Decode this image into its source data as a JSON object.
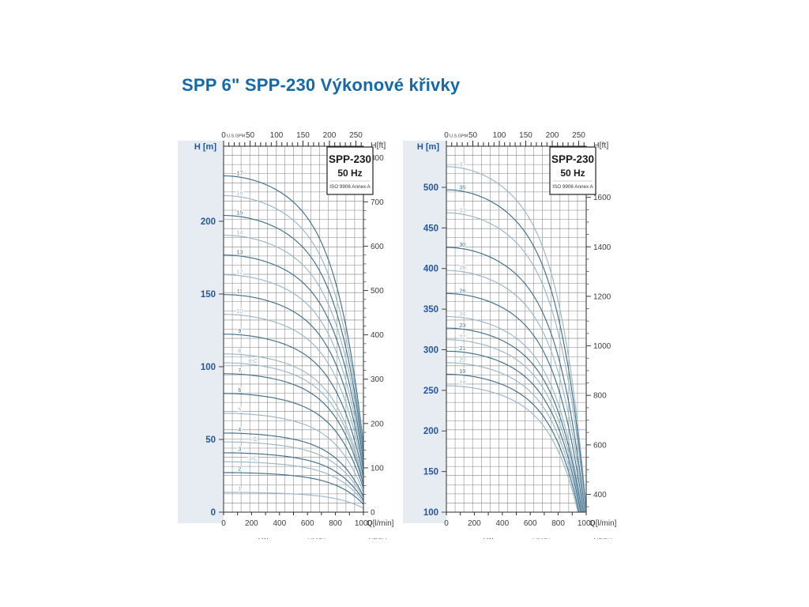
{
  "page": {
    "title": "SPP 6\" SPP-230 Výkonové křivky",
    "title_color": "#1568a9",
    "background": "#ffffff"
  },
  "style": {
    "axis_blue": "#2257a5",
    "axis_gray": "#3c3c3c",
    "grid_color": "#848484",
    "frame_color": "#2b2b2b",
    "curve_dark": "#41708a",
    "curve_light": "#9bb6c6",
    "gutter_bg": "#e7ebf2",
    "footer_red": "#b5524b",
    "footer_gray": "#6b8395"
  },
  "charts": [
    {
      "name": "left-chart",
      "badge": {
        "line1": "SPP-230",
        "line2": "50 Hz",
        "line3": "ISO 9906 Annex A"
      },
      "axis_labels": {
        "left": "H [m]",
        "right": "H[ft]",
        "top_zero": "0",
        "top_unit": "U.S.GPM",
        "bottom_unit": "Q[l/min]"
      },
      "left_ticks_m": [
        0,
        50,
        100,
        150,
        200
      ],
      "right_ticks_ft": [
        0,
        100,
        200,
        300,
        400,
        500,
        600,
        700,
        800
      ],
      "right_minor_step_ft": 20,
      "top_ticks_gpm": [
        50,
        100,
        150,
        200,
        250
      ],
      "bottom_ticks_lmin": [
        0,
        200,
        400,
        600,
        800,
        1000
      ],
      "y_range_m": [
        0,
        251.6
      ],
      "x_range_lmin": [
        0,
        1000
      ],
      "per_stage_head_m": 13.6,
      "curve_model": {
        "a": 0.28,
        "b": 0.52
      },
      "curves": [
        {
          "label": "17",
          "stages": 17,
          "shade": "dark"
        },
        {
          "label": "16",
          "stages": 16,
          "shade": "light"
        },
        {
          "label": "15",
          "stages": 15,
          "shade": "dark"
        },
        {
          "label": "14",
          "stages": 14,
          "shade": "light"
        },
        {
          "label": "13",
          "stages": 13,
          "shade": "dark"
        },
        {
          "label": "12",
          "stages": 12,
          "shade": "light"
        },
        {
          "label": "11",
          "stages": 11,
          "shade": "dark"
        },
        {
          "label": "10",
          "stages": 10,
          "shade": "light"
        },
        {
          "label": "9",
          "stages": 9,
          "shade": "dark"
        },
        {
          "label": "8",
          "stages": 8,
          "shade": "light"
        },
        {
          "label": "8-C",
          "stages": 7.55,
          "shade": "light",
          "label_q": 210
        },
        {
          "label": "7",
          "stages": 7,
          "shade": "dark"
        },
        {
          "label": "6",
          "stages": 6,
          "shade": "dark"
        },
        {
          "label": "5",
          "stages": 5,
          "shade": "light"
        },
        {
          "label": "4",
          "stages": 4,
          "shade": "dark"
        },
        {
          "label": "4-C",
          "stages": 3.55,
          "shade": "light",
          "label_q": 210
        },
        {
          "label": "3",
          "stages": 3,
          "shade": "dark"
        },
        {
          "label": "3-C",
          "stages": 2.55,
          "shade": "light",
          "label_q": 210
        },
        {
          "label": "2",
          "stages": 2,
          "shade": "dark"
        },
        {
          "label": "1",
          "stages": 1,
          "shade": "light"
        }
      ],
      "footer_clipped": [
        "kW",
        "HMC/max",
        "NPSH"
      ]
    },
    {
      "name": "right-chart",
      "badge": {
        "line1": "SPP-230",
        "line2": "50 Hz",
        "line3": "ISO 9906 Annex A"
      },
      "axis_labels": {
        "left": "H [m]",
        "right": "H[ft]",
        "top_zero": "0",
        "top_unit": "U.S.GPM",
        "bottom_unit": "Q[l/min]"
      },
      "left_ticks_m": [
        100,
        150,
        200,
        250,
        300,
        350,
        400,
        450,
        500
      ],
      "right_ticks_ft": [
        400,
        600,
        800,
        1000,
        1200,
        1400,
        1600
      ],
      "right_minor_step_ft": 50,
      "top_ticks_gpm": [
        50,
        100,
        150,
        200,
        250
      ],
      "bottom_ticks_lmin": [
        0,
        200,
        400,
        600,
        800,
        1000
      ],
      "y_range_m": [
        100,
        550.6
      ],
      "x_range_lmin": [
        0,
        1000
      ],
      "per_stage_head_m": 14.2,
      "curve_model": {
        "a": 0.28,
        "b": 0.52
      },
      "curves": [
        {
          "label": "37",
          "stages": 37,
          "shade": "light"
        },
        {
          "label": "35",
          "stages": 35,
          "shade": "dark"
        },
        {
          "label": "33",
          "stages": 33,
          "shade": "light"
        },
        {
          "label": "30",
          "stages": 30,
          "shade": "dark"
        },
        {
          "label": "28",
          "stages": 28,
          "shade": "light"
        },
        {
          "label": "26",
          "stages": 26,
          "shade": "dark"
        },
        {
          "label": "24",
          "stages": 24,
          "shade": "light"
        },
        {
          "label": "23",
          "stages": 23,
          "shade": "dark"
        },
        {
          "label": "22",
          "stages": 22,
          "shade": "light"
        },
        {
          "label": "21",
          "stages": 21,
          "shade": "dark"
        },
        {
          "label": "20",
          "stages": 20,
          "shade": "light"
        },
        {
          "label": "19",
          "stages": 19,
          "shade": "dark"
        },
        {
          "label": "18",
          "stages": 18,
          "shade": "light"
        }
      ],
      "footer_clipped": [
        "kW",
        "HMC/max",
        "NPSH"
      ]
    }
  ],
  "chart_data": [
    {
      "type": "line",
      "title": "SPP-230 50 Hz",
      "subtitle": "ISO 9906 Annex A",
      "xlabel": "Q[l/min]",
      "xlabel_top": "U.S.GPM",
      "ylabel_left": "H [m]",
      "ylabel_right": "H[ft]",
      "xlim": [
        0,
        1000
      ],
      "ylim_m": [
        0,
        252
      ],
      "ylim_ft": [
        0,
        800
      ],
      "x_top_ticks_gpm": [
        0,
        50,
        100,
        150,
        200,
        250
      ],
      "grid": true,
      "legend_position": "on-curve-labels",
      "x": [
        0,
        200,
        400,
        600,
        800,
        1000
      ],
      "series": [
        {
          "name": "17",
          "values": [
            231.2,
            228.6,
            220.4,
            202.3,
            158.3,
            46.2
          ]
        },
        {
          "name": "16",
          "values": [
            217.6,
            215.2,
            207.4,
            190.4,
            148.9,
            43.5
          ]
        },
        {
          "name": "15",
          "values": [
            204.0,
            201.7,
            194.4,
            178.5,
            139.6,
            40.8
          ]
        },
        {
          "name": "14",
          "values": [
            190.4,
            188.3,
            181.5,
            166.6,
            130.3,
            38.1
          ]
        },
        {
          "name": "13",
          "values": [
            176.8,
            174.8,
            168.5,
            154.7,
            121.0,
            35.4
          ]
        },
        {
          "name": "12",
          "values": [
            163.2,
            161.4,
            155.5,
            142.8,
            111.7,
            32.6
          ]
        },
        {
          "name": "11",
          "values": [
            149.6,
            147.9,
            142.6,
            130.9,
            102.4,
            29.9
          ]
        },
        {
          "name": "10",
          "values": [
            136.0,
            134.5,
            129.6,
            119.0,
            93.1,
            27.2
          ]
        },
        {
          "name": "9",
          "values": [
            122.4,
            121.0,
            116.7,
            107.1,
            83.8,
            24.5
          ]
        },
        {
          "name": "8",
          "values": [
            108.8,
            107.6,
            103.7,
            95.2,
            74.5,
            21.8
          ]
        },
        {
          "name": "8-C",
          "values": [
            102.7,
            101.5,
            97.9,
            89.8,
            70.3,
            20.5
          ]
        },
        {
          "name": "7",
          "values": [
            95.2,
            94.1,
            90.7,
            83.3,
            65.2,
            19.0
          ]
        },
        {
          "name": "6",
          "values": [
            81.6,
            80.7,
            77.8,
            71.4,
            55.9,
            16.3
          ]
        },
        {
          "name": "5",
          "values": [
            68.0,
            67.2,
            64.8,
            59.5,
            46.5,
            13.6
          ]
        },
        {
          "name": "4",
          "values": [
            54.4,
            53.8,
            51.9,
            47.6,
            37.2,
            10.9
          ]
        },
        {
          "name": "4-C",
          "values": [
            48.3,
            47.7,
            46.0,
            42.2,
            33.0,
            9.7
          ]
        },
        {
          "name": "3",
          "values": [
            40.8,
            40.3,
            38.9,
            35.7,
            27.9,
            8.2
          ]
        },
        {
          "name": "3-C",
          "values": [
            34.7,
            34.3,
            33.1,
            30.3,
            23.7,
            6.9
          ]
        },
        {
          "name": "2",
          "values": [
            27.2,
            26.9,
            25.9,
            23.8,
            18.6,
            5.4
          ]
        },
        {
          "name": "1",
          "values": [
            13.6,
            13.4,
            13.0,
            11.9,
            9.3,
            2.7
          ]
        }
      ]
    },
    {
      "type": "line",
      "title": "SPP-230 50 Hz",
      "subtitle": "ISO 9906 Annex A",
      "xlabel": "Q[l/min]",
      "xlabel_top": "U.S.GPM",
      "ylabel_left": "H [m]",
      "ylabel_right": "H[ft]",
      "xlim": [
        0,
        1000
      ],
      "ylim_m": [
        100,
        551
      ],
      "ylim_ft": [
        350,
        1650
      ],
      "x_top_ticks_gpm": [
        0,
        50,
        100,
        150,
        200,
        250
      ],
      "grid": true,
      "legend_position": "on-curve-labels",
      "x": [
        0,
        200,
        400,
        600,
        800,
        1000
      ],
      "series": [
        {
          "name": "37",
          "values": [
            525.4,
            519.5,
            500.8,
            459.7,
            359.6,
            105.1
          ]
        },
        {
          "name": "35",
          "values": [
            497.0,
            491.4,
            473.7,
            434.8,
            340.2,
            99.4
          ]
        },
        {
          "name": "33",
          "values": [
            468.6,
            463.4,
            446.6,
            410.0,
            320.8,
            93.7
          ]
        },
        {
          "name": "30",
          "values": [
            426.0,
            421.2,
            406.0,
            372.7,
            291.6,
            85.2
          ]
        },
        {
          "name": "28",
          "values": [
            397.6,
            393.1,
            379.0,
            347.9,
            272.2,
            79.5
          ]
        },
        {
          "name": "26",
          "values": [
            369.2,
            365.1,
            351.9,
            323.0,
            252.7,
            73.8
          ]
        },
        {
          "name": "24",
          "values": [
            340.8,
            337.0,
            324.8,
            298.2,
            233.3,
            68.2
          ]
        },
        {
          "name": "23",
          "values": [
            326.6,
            322.9,
            311.3,
            285.7,
            223.6,
            65.3
          ]
        },
        {
          "name": "22",
          "values": [
            312.4,
            308.9,
            297.7,
            273.3,
            213.8,
            62.5
          ]
        },
        {
          "name": "21",
          "values": [
            298.2,
            294.9,
            284.2,
            260.9,
            204.1,
            59.6
          ]
        },
        {
          "name": "20",
          "values": [
            284.0,
            280.8,
            270.7,
            248.5,
            194.4,
            56.8
          ]
        },
        {
          "name": "19",
          "values": [
            269.8,
            266.8,
            257.2,
            236.1,
            184.7,
            54.0
          ]
        },
        {
          "name": "18",
          "values": [
            255.6,
            252.7,
            243.6,
            223.7,
            175.0,
            51.1
          ]
        }
      ]
    }
  ]
}
